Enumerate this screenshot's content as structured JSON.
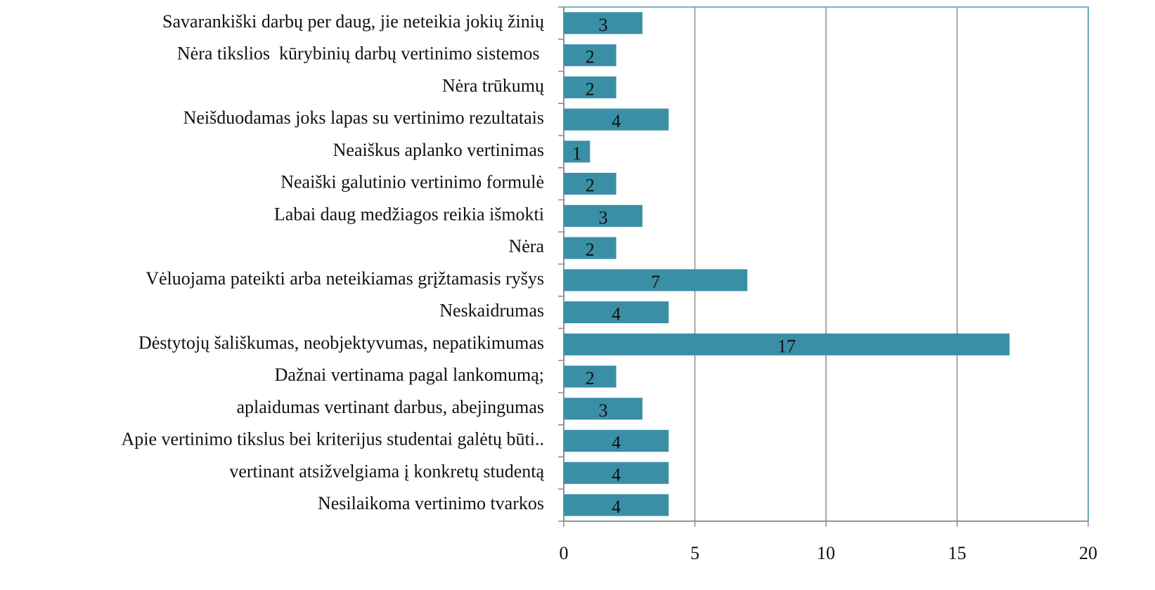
{
  "chart_data": {
    "type": "barh",
    "categories": [
      "Savarankiški darbų per daug, jie neteikia jokių žinių",
      "Nėra tikslios  kūrybinių darbų vertinimo sistemos ",
      "Nėra trūkumų",
      "Neišduodamas joks lapas su vertinimo rezultatais",
      "Neaiškus aplanko vertinimas",
      "Neaiški galutinio vertinimo formulė",
      "Labai daug medžiagos reikia išmokti",
      "Nėra",
      "Vėluojama pateikti arba neteikiamas grįžtamasis ryšys",
      "Neskaidrumas",
      "Dėstytojų šališkumas, neobjektyvumas, nepatikimumas",
      "Dažnai vertinama pagal lankomumą;",
      "aplaidumas vertinant darbus, abejingumas",
      "Apie vertinimo tikslus bei kriterijus studentai galėtų būti..",
      "vertinant atsižvelgiama į konkretų studentą",
      "Nesilaikoma vertinimo tvarkos"
    ],
    "values": [
      3,
      2,
      2,
      4,
      1,
      2,
      3,
      2,
      7,
      4,
      17,
      2,
      3,
      4,
      4,
      4
    ],
    "color": "#3a8fa6",
    "xlim": [
      0,
      20
    ],
    "xticks": [
      0,
      5,
      10,
      15,
      20
    ],
    "grid": true
  }
}
